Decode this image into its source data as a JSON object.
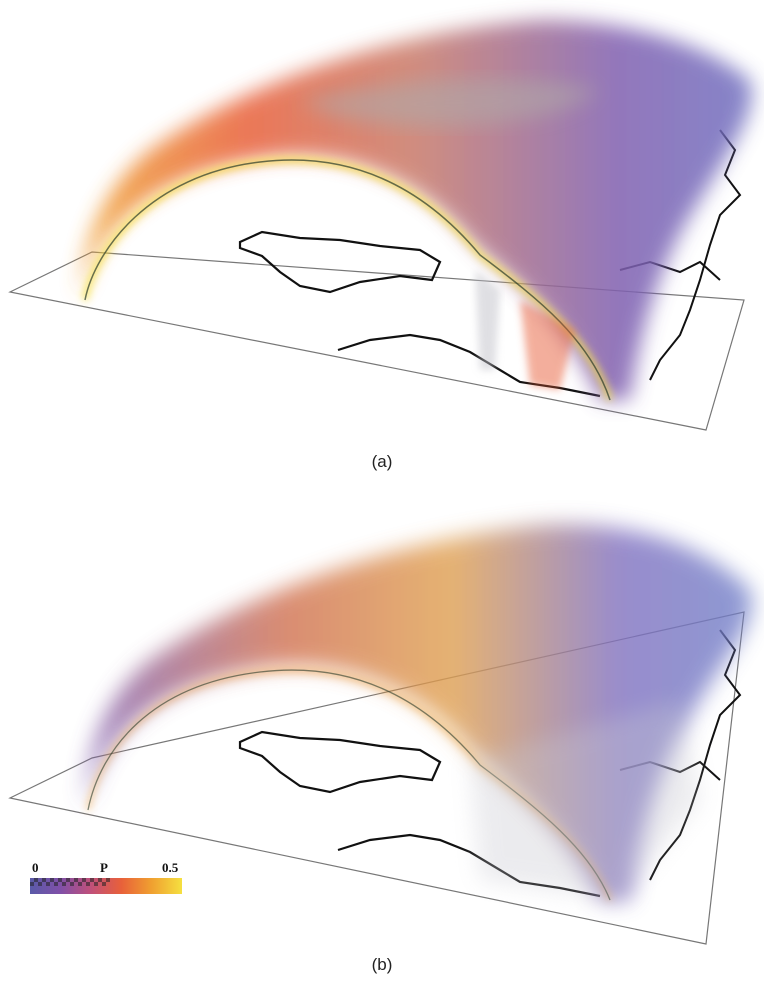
{
  "figure": {
    "panel_a_caption": "(a)",
    "panel_b_caption": "(b)",
    "colorbar": {
      "min_label": "0",
      "variable_label": "P",
      "max_label": "0.5",
      "colors": [
        "#5a5aa8",
        "#8050a8",
        "#c0507a",
        "#e8603a",
        "#f0a030",
        "#f5e040"
      ]
    }
  }
}
